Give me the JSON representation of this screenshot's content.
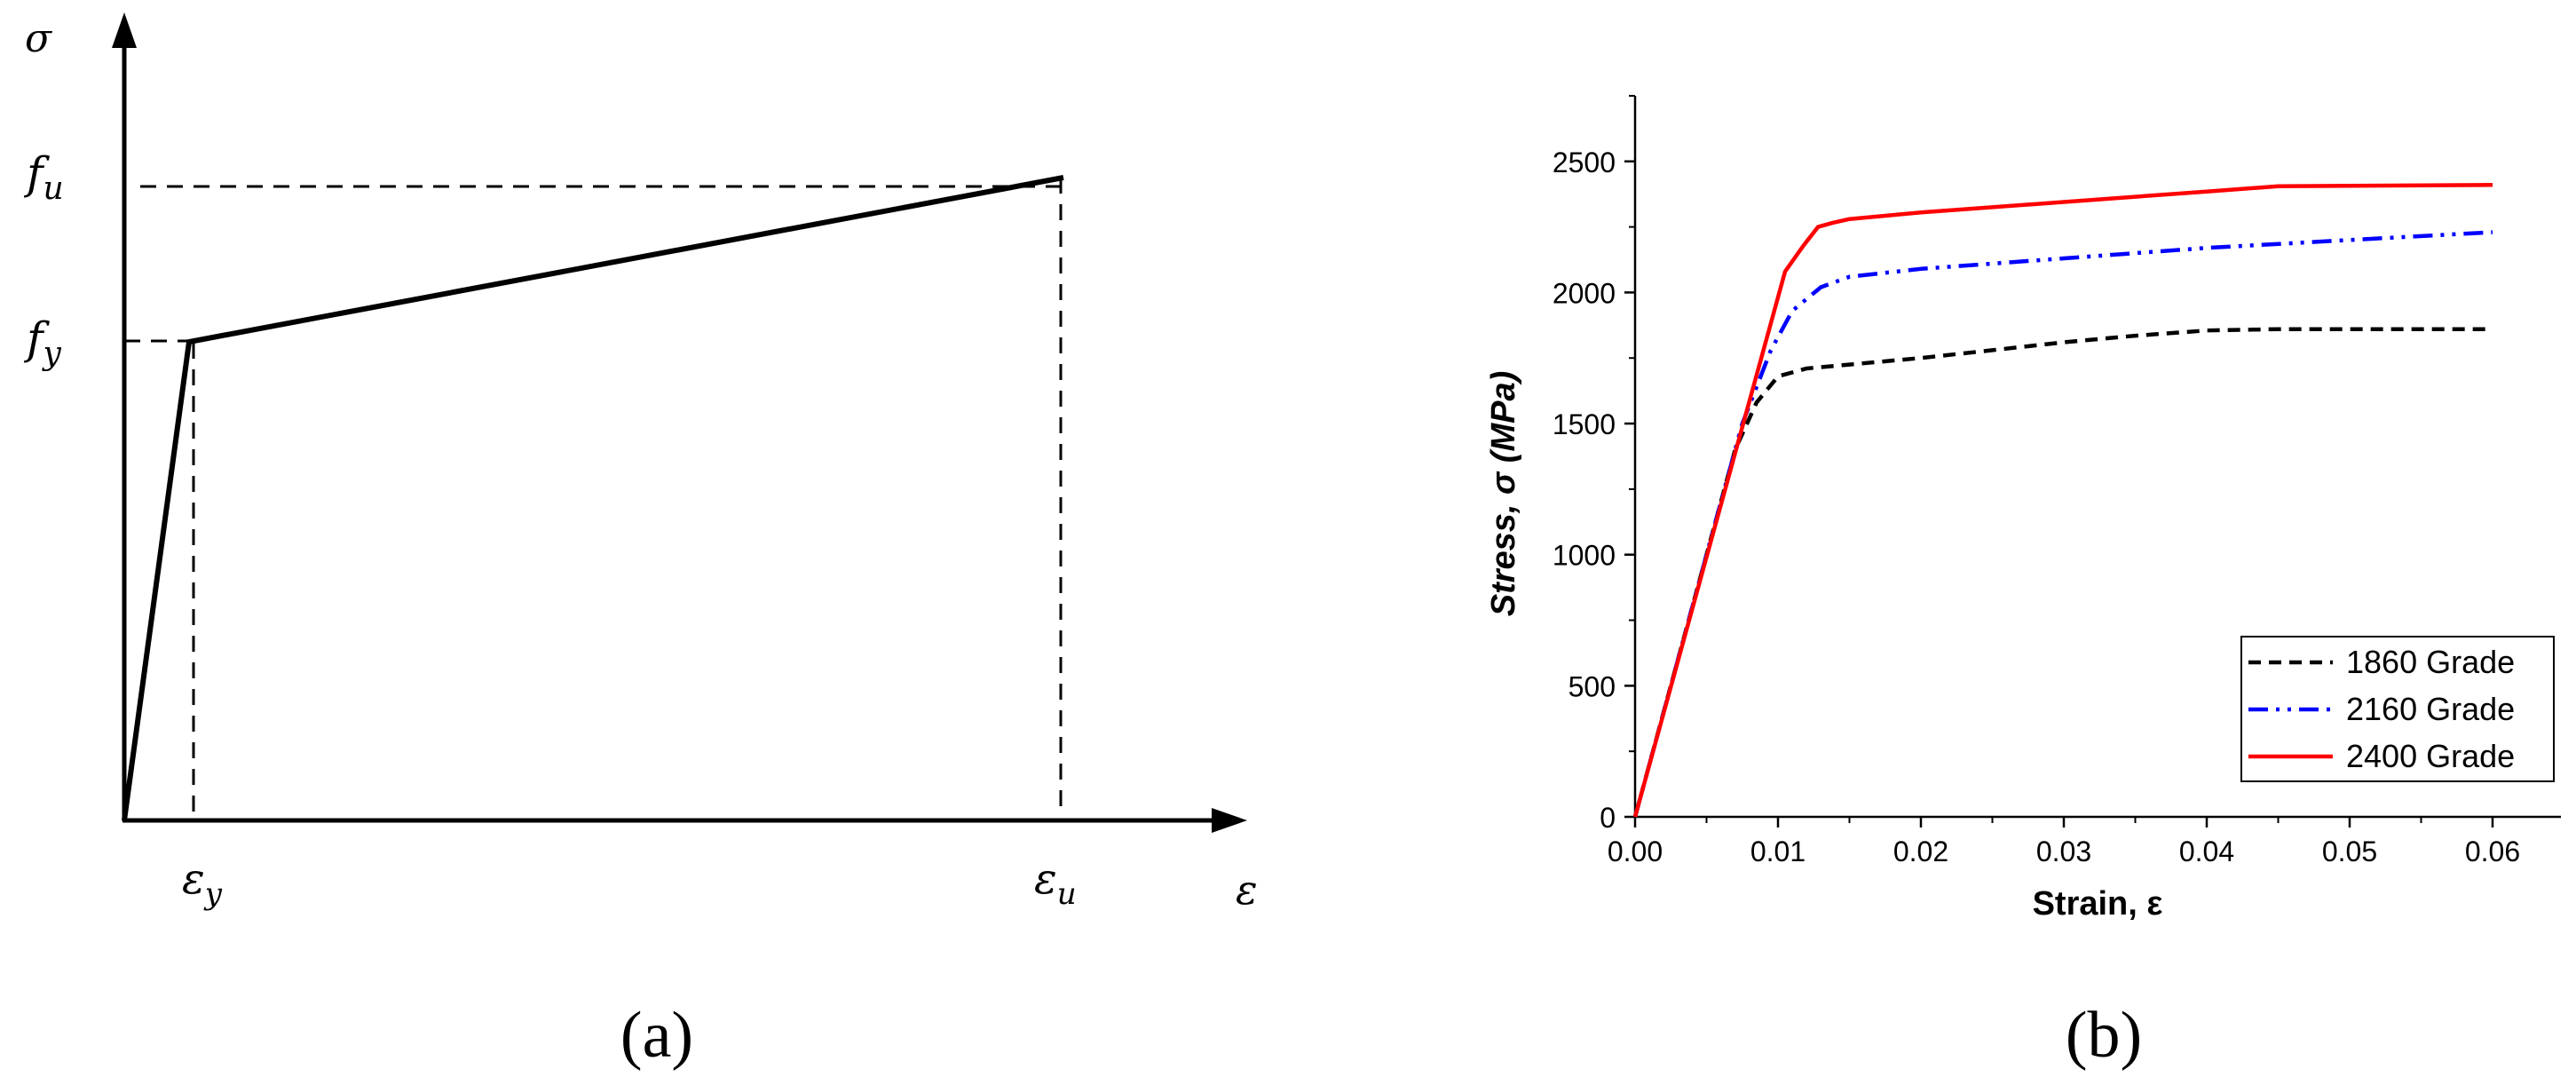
{
  "panel_a": {
    "y_axis_label": "σ",
    "x_axis_label": "ε",
    "fu_label": "f",
    "fu_sub": "u",
    "fy_label": "f",
    "fy_sub": "y",
    "ey_label": "ε",
    "ey_sub": "y",
    "eu_label": "ε",
    "eu_sub": "u",
    "caption": "(a)"
  },
  "panel_b": {
    "caption": "(b)"
  },
  "chart_data": [
    {
      "type": "line",
      "title": "",
      "xlabel": "ε",
      "ylabel": "σ",
      "points": {
        "origin": [
          0,
          0
        ],
        "yield": [
          "ε_y",
          "f_y"
        ],
        "ultimate": [
          "ε_u",
          "f_u"
        ]
      }
    },
    {
      "type": "line",
      "title": "",
      "xlabel": "Strain, ε",
      "ylabel": "Stress, σ (MPa)",
      "xlim": [
        0,
        0.062
      ],
      "ylim": [
        0,
        2750
      ],
      "x_ticks": [
        0,
        0.01,
        0.02,
        0.03,
        0.04,
        0.05,
        0.06
      ],
      "x_tick_labels": [
        "0.00",
        "0.01",
        "0.02",
        "0.03",
        "0.04",
        "0.05",
        "0.06"
      ],
      "y_ticks": [
        0,
        500,
        1000,
        1500,
        2000,
        2500
      ],
      "y_tick_labels": [
        "0",
        "500",
        "1000",
        "1500",
        "2000",
        "2500"
      ],
      "legend_position": "bottom-right",
      "grid": false,
      "series": [
        {
          "name": "1860 Grade",
          "color": "#000000",
          "style": "dash",
          "points": [
            [
              0,
              0
            ],
            [
              0.007,
              1400
            ],
            [
              0.0085,
              1580
            ],
            [
              0.01,
              1680
            ],
            [
              0.012,
              1710
            ],
            [
              0.015,
              1725
            ],
            [
              0.02,
              1750
            ],
            [
              0.025,
              1780
            ],
            [
              0.03,
              1810
            ],
            [
              0.035,
              1835
            ],
            [
              0.04,
              1855
            ],
            [
              0.045,
              1860
            ],
            [
              0.06,
              1860
            ]
          ]
        },
        {
          "name": "2160 Grade",
          "color": "#0000ff",
          "style": "dash-dot-dot",
          "points": [
            [
              0,
              0
            ],
            [
              0.0075,
              1500
            ],
            [
              0.0095,
              1780
            ],
            [
              0.011,
              1930
            ],
            [
              0.013,
              2020
            ],
            [
              0.015,
              2060
            ],
            [
              0.02,
              2090
            ],
            [
              0.03,
              2130
            ],
            [
              0.04,
              2170
            ],
            [
              0.05,
              2200
            ],
            [
              0.06,
              2230
            ]
          ]
        },
        {
          "name": "2400 Grade",
          "color": "#ff0000",
          "style": "solid",
          "points": [
            [
              0,
              0
            ],
            [
              0.0105,
              2080
            ],
            [
              0.0118,
              2180
            ],
            [
              0.0128,
              2250
            ],
            [
              0.0138,
              2265
            ],
            [
              0.015,
              2280
            ],
            [
              0.02,
              2305
            ],
            [
              0.03,
              2345
            ],
            [
              0.04,
              2385
            ],
            [
              0.045,
              2405
            ],
            [
              0.06,
              2410
            ]
          ]
        }
      ]
    }
  ]
}
